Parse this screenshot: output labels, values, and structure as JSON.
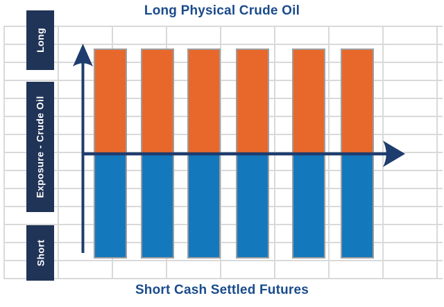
{
  "title": "Long Physical Crude Oil",
  "x_axis_label": "Short Cash Settled Futures",
  "y_axis": {
    "top_label": "Long",
    "middle_label": "Exposure - Crude Oil",
    "bottom_label": "Short"
  },
  "colors": {
    "background": "#ffffff",
    "title_navy": "#1a4b8c",
    "box_navy": "#203457",
    "arrow_navy": "#1e3d6e",
    "bar_orange": "#e8682b",
    "bar_blue": "#1478bd",
    "bar_border": "#9e9e9e",
    "grid_line": "#d9d9d9"
  },
  "chart_data": {
    "type": "bar",
    "title": "Long Physical Crude Oil",
    "xlabel": "Short Cash Settled Futures",
    "ylabel": "Exposure - Crude Oil",
    "y_axis_annotations": [
      "Long",
      "Short"
    ],
    "categories": [
      "",
      "",
      "",
      "",
      "",
      ""
    ],
    "series": [
      {
        "name": "Long Physical Crude Oil",
        "color": "#e8682b",
        "values": [
          1,
          1,
          1,
          1,
          1,
          1
        ]
      },
      {
        "name": "Short Cash Settled Futures",
        "color": "#1478bd",
        "values": [
          -1,
          -1,
          -1,
          -1,
          -1,
          -1
        ]
      }
    ],
    "ylim": [
      -1.05,
      1.05
    ],
    "grid": true,
    "legend": false,
    "zero_line": true
  }
}
